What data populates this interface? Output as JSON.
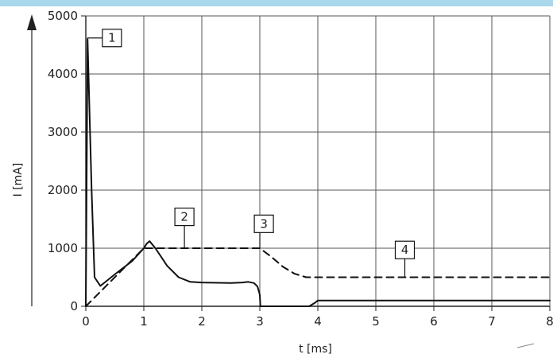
{
  "header": {
    "accent_color": "#a8d8ea"
  },
  "chart_data": {
    "type": "line",
    "title": "",
    "xlabel": "t [ms]",
    "ylabel": "I [mA]",
    "xlim": [
      0,
      8
    ],
    "ylim": [
      0,
      5000
    ],
    "grid": true,
    "xticks": [
      0,
      1,
      2,
      3,
      4,
      5,
      6,
      7,
      8
    ],
    "yticks": [
      0,
      1000,
      2000,
      3000,
      4000,
      5000
    ],
    "xtick_labels": [
      "0",
      "1",
      "2",
      "3",
      "4",
      "5",
      "6",
      "7",
      "8"
    ],
    "ytick_labels": [
      "0",
      "1000",
      "2000",
      "3000",
      "4000",
      "5000"
    ],
    "series": [
      {
        "style": "solid",
        "x": [
          0,
          0.03,
          0.1,
          0.15,
          0.25,
          0.5,
          0.8,
          1.0,
          1.05,
          1.1,
          1.2,
          1.4,
          1.6,
          1.8,
          2.0,
          2.5,
          2.7,
          2.8,
          2.9,
          2.96,
          3.0,
          3.01,
          3.5,
          3.85,
          3.95,
          4.0,
          4.5,
          6.0,
          8.0
        ],
        "y": [
          0,
          4600,
          2000,
          500,
          350,
          550,
          780,
          1000,
          1080,
          1120,
          1000,
          700,
          500,
          420,
          410,
          400,
          410,
          420,
          400,
          340,
          200,
          0,
          0,
          0,
          60,
          100,
          100,
          100,
          100
        ]
      },
      {
        "style": "dashed",
        "x": [
          0,
          0.5,
          1.0,
          1.3,
          2.0,
          2.5,
          2.9,
          3.0,
          3.2,
          3.4,
          3.6,
          3.8,
          4.5,
          8.0
        ],
        "y": [
          0,
          500,
          1000,
          1000,
          1000,
          1000,
          1000,
          1000,
          850,
          680,
          560,
          500,
          500,
          500
        ]
      }
    ],
    "annotations": [
      {
        "label": "1",
        "x": 0.03,
        "y": 4600,
        "box_x": 0.45,
        "box_y": 4620,
        "leader": "angle"
      },
      {
        "label": "2",
        "x": 1.7,
        "y": 1000,
        "box_x": 1.7,
        "box_y": 1540,
        "leader": "vertical"
      },
      {
        "label": "3",
        "x": 3.0,
        "y": 1000,
        "box_x": 3.07,
        "box_y": 1420,
        "leader": "vertical"
      },
      {
        "label": "4",
        "x": 5.5,
        "y": 500,
        "box_x": 5.5,
        "box_y": 970,
        "leader": "vertical"
      }
    ]
  }
}
